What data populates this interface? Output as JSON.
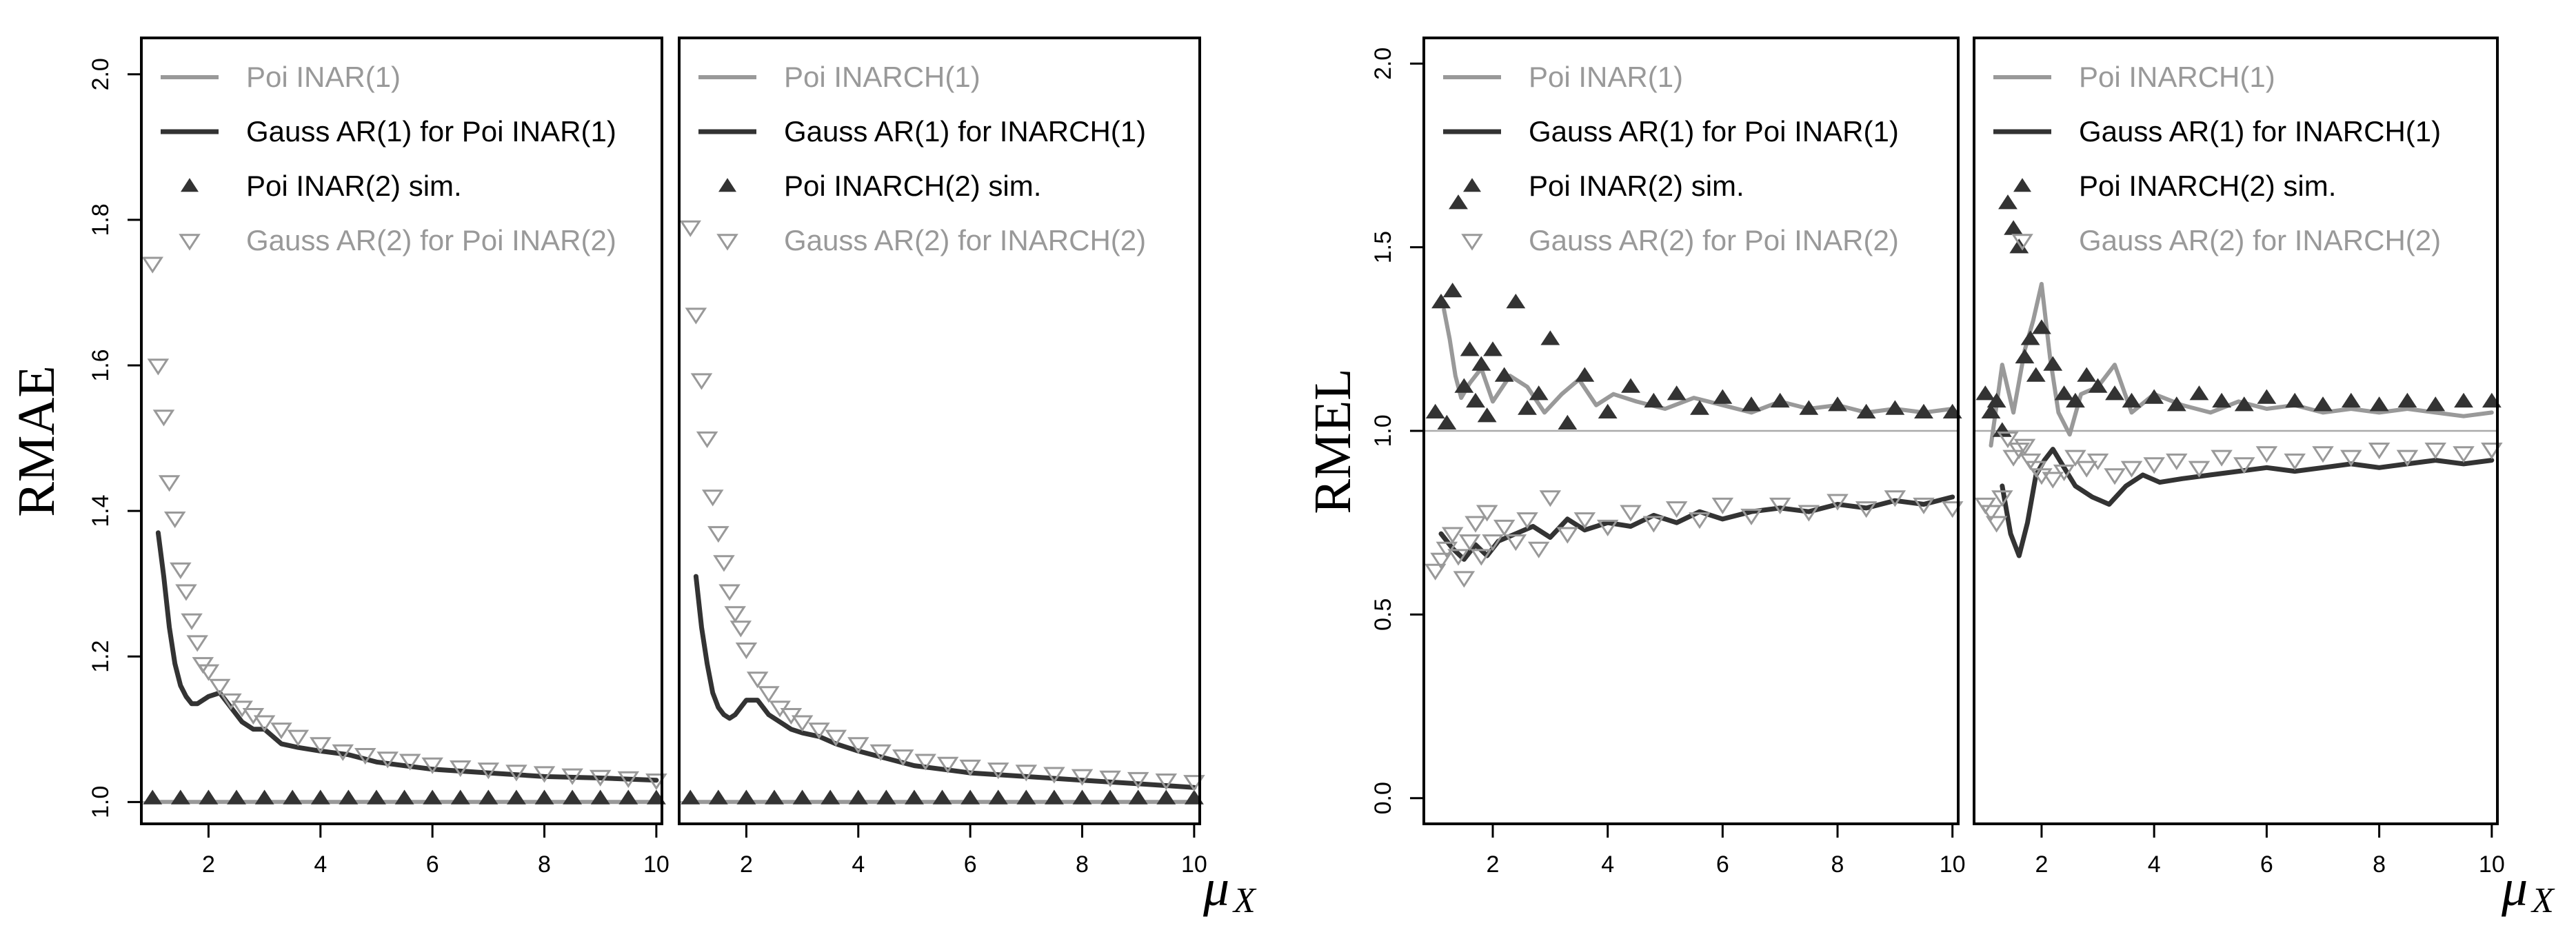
{
  "colors": {
    "gray": "#999999",
    "dark": "#333333",
    "ref": "#aaaaaa"
  },
  "chart_data": [
    {
      "type": "line",
      "ylabel": "RMAE",
      "xlabel": "μ",
      "xlabel_sub": "X",
      "xlim": [
        0.8,
        10.1
      ],
      "ylim": [
        0.97,
        2.05
      ],
      "xticks": [
        "2",
        "4",
        "6",
        "8",
        "10"
      ],
      "yticks": [
        "1.0",
        "1.2",
        "1.4",
        "1.6",
        "1.8",
        "2.0"
      ],
      "reference_y": 1.0,
      "legend": [
        "Poi INAR(1)",
        "Gauss AR(1) for Poi INAR(1)",
        "Poi INAR(2) sim.",
        "Gauss AR(2) for Poi INAR(2)"
      ],
      "series": [
        {
          "name": "Poi INAR(1)",
          "style": "line-gray",
          "x": [
            1,
            2,
            4,
            6,
            8,
            10
          ],
          "values": [
            1.0,
            1.0,
            1.0,
            1.0,
            1.0,
            1.0
          ]
        },
        {
          "name": "Gauss AR(1) for Poi INAR(1)",
          "style": "line-dark",
          "x": [
            1.1,
            1.2,
            1.3,
            1.4,
            1.5,
            1.6,
            1.7,
            1.8,
            1.9,
            2.0,
            2.2,
            2.4,
            2.6,
            2.8,
            3.0,
            3.3,
            3.6,
            4.0,
            4.5,
            5.0,
            5.5,
            6.0,
            7.0,
            8.0,
            9.0,
            10.0
          ],
          "values": [
            1.37,
            1.31,
            1.24,
            1.19,
            1.16,
            1.145,
            1.135,
            1.135,
            1.14,
            1.145,
            1.15,
            1.13,
            1.11,
            1.1,
            1.1,
            1.08,
            1.075,
            1.07,
            1.065,
            1.055,
            1.05,
            1.045,
            1.04,
            1.035,
            1.033,
            1.03
          ]
        },
        {
          "name": "Poi INAR(2) sim.",
          "style": "tri-up-dark",
          "x": [
            1.0,
            1.5,
            2.0,
            2.5,
            3.0,
            3.5,
            4.0,
            4.5,
            5.0,
            5.5,
            6.0,
            6.5,
            7.0,
            7.5,
            8.0,
            8.5,
            9.0,
            9.5,
            10.0
          ],
          "values": [
            1.005,
            1.005,
            1.005,
            1.005,
            1.005,
            1.005,
            1.005,
            1.005,
            1.005,
            1.005,
            1.005,
            1.005,
            1.005,
            1.005,
            1.005,
            1.005,
            1.005,
            1.005,
            1.005
          ]
        },
        {
          "name": "Gauss AR(2) for Poi INAR(2)",
          "style": "tri-down-gray",
          "x": [
            1.0,
            1.1,
            1.2,
            1.3,
            1.4,
            1.5,
            1.6,
            1.7,
            1.8,
            1.9,
            2.0,
            2.2,
            2.4,
            2.6,
            2.8,
            3.0,
            3.3,
            3.6,
            4.0,
            4.4,
            4.8,
            5.2,
            5.6,
            6.0,
            6.5,
            7.0,
            7.5,
            8.0,
            8.5,
            9.0,
            9.5,
            10.0
          ],
          "values": [
            1.74,
            1.6,
            1.53,
            1.44,
            1.39,
            1.32,
            1.29,
            1.25,
            1.22,
            1.19,
            1.18,
            1.16,
            1.14,
            1.13,
            1.12,
            1.11,
            1.1,
            1.09,
            1.08,
            1.07,
            1.065,
            1.06,
            1.057,
            1.052,
            1.048,
            1.045,
            1.042,
            1.04,
            1.037,
            1.035,
            1.033,
            1.03
          ]
        }
      ]
    },
    {
      "type": "line",
      "ylabel": "",
      "xlabel": "μ",
      "xlabel_sub": "X",
      "xlim": [
        0.8,
        10.1
      ],
      "ylim": [
        0.97,
        2.05
      ],
      "xticks": [
        "2",
        "4",
        "6",
        "8",
        "10"
      ],
      "yticks": [],
      "reference_y": 1.0,
      "legend": [
        "Poi INARCH(1)",
        "Gauss AR(1) for INARCH(1)",
        "Poi INARCH(2) sim.",
        "Gauss AR(2) for INARCH(2)"
      ],
      "series": [
        {
          "name": "Poi INARCH(1)",
          "style": "line-gray",
          "x": [
            1,
            2,
            4,
            6,
            8,
            10
          ],
          "values": [
            1.0,
            1.0,
            1.0,
            1.0,
            1.0,
            1.0
          ]
        },
        {
          "name": "Gauss AR(1) for INARCH(1)",
          "style": "line-dark",
          "x": [
            1.1,
            1.2,
            1.3,
            1.4,
            1.5,
            1.6,
            1.7,
            1.8,
            1.9,
            2.0,
            2.2,
            2.4,
            2.6,
            2.8,
            3.0,
            3.3,
            3.6,
            4.0,
            4.5,
            5.0,
            5.5,
            6.0,
            7.0,
            8.0,
            9.0,
            10.0
          ],
          "values": [
            1.31,
            1.24,
            1.19,
            1.15,
            1.13,
            1.12,
            1.115,
            1.12,
            1.13,
            1.14,
            1.14,
            1.12,
            1.11,
            1.1,
            1.095,
            1.09,
            1.08,
            1.07,
            1.06,
            1.05,
            1.045,
            1.04,
            1.035,
            1.03,
            1.025,
            1.02
          ]
        },
        {
          "name": "Poi INARCH(2) sim.",
          "style": "tri-up-dark",
          "x": [
            1.0,
            1.5,
            2.0,
            2.5,
            3.0,
            3.5,
            4.0,
            4.5,
            5.0,
            5.5,
            6.0,
            6.5,
            7.0,
            7.5,
            8.0,
            8.5,
            9.0,
            9.5,
            10.0
          ],
          "values": [
            1.005,
            1.005,
            1.005,
            1.005,
            1.005,
            1.005,
            1.005,
            1.005,
            1.005,
            1.005,
            1.005,
            1.005,
            1.005,
            1.005,
            1.005,
            1.005,
            1.005,
            1.005,
            1.005
          ]
        },
        {
          "name": "Gauss AR(2) for INARCH(2)",
          "style": "tri-down-gray",
          "x": [
            1.0,
            1.1,
            1.2,
            1.3,
            1.4,
            1.5,
            1.6,
            1.7,
            1.8,
            1.9,
            2.0,
            2.2,
            2.4,
            2.6,
            2.8,
            3.0,
            3.3,
            3.6,
            4.0,
            4.4,
            4.8,
            5.2,
            5.6,
            6.0,
            6.5,
            7.0,
            7.5,
            8.0,
            8.5,
            9.0,
            9.5,
            10.0
          ],
          "values": [
            1.79,
            1.67,
            1.58,
            1.5,
            1.42,
            1.37,
            1.33,
            1.29,
            1.26,
            1.24,
            1.21,
            1.17,
            1.15,
            1.13,
            1.12,
            1.11,
            1.1,
            1.09,
            1.08,
            1.07,
            1.063,
            1.057,
            1.053,
            1.049,
            1.045,
            1.042,
            1.039,
            1.036,
            1.034,
            1.032,
            1.03,
            1.028
          ]
        }
      ]
    },
    {
      "type": "line",
      "ylabel": "RMEL",
      "xlabel": "μ",
      "xlabel_sub": "X",
      "xlim": [
        0.8,
        10.1
      ],
      "ylim": [
        -0.07,
        2.07
      ],
      "xticks": [
        "2",
        "4",
        "6",
        "8",
        "10"
      ],
      "yticks": [
        "0.0",
        "0.5",
        "1.0",
        "1.5",
        "2.0"
      ],
      "reference_y": 1.0,
      "legend": [
        "Poi INAR(1)",
        "Gauss AR(1) for Poi INAR(1)",
        "Poi INAR(2) sim.",
        "Gauss AR(2) for Poi INAR(2)"
      ],
      "series": [
        {
          "name": "Poi INAR(1)",
          "style": "line-gray",
          "x": [
            1.15,
            1.25,
            1.35,
            1.45,
            1.6,
            1.8,
            2.0,
            2.3,
            2.6,
            2.9,
            3.2,
            3.5,
            3.8,
            4.1,
            4.5,
            5.0,
            5.5,
            6.0,
            6.5,
            7.0,
            7.5,
            8.0,
            8.5,
            9.0,
            9.5,
            10.0
          ],
          "values": [
            1.33,
            1.25,
            1.15,
            1.09,
            1.13,
            1.17,
            1.08,
            1.15,
            1.12,
            1.05,
            1.1,
            1.14,
            1.07,
            1.1,
            1.08,
            1.06,
            1.09,
            1.07,
            1.05,
            1.08,
            1.06,
            1.07,
            1.05,
            1.06,
            1.05,
            1.06
          ]
        },
        {
          "name": "Gauss AR(1) for Poi INAR(1)",
          "style": "line-dark",
          "x": [
            1.1,
            1.3,
            1.5,
            1.7,
            1.9,
            2.1,
            2.4,
            2.7,
            3.0,
            3.3,
            3.6,
            4.0,
            4.4,
            4.8,
            5.2,
            5.6,
            6.0,
            6.5,
            7.0,
            7.5,
            8.0,
            8.5,
            9.0,
            9.5,
            10.0
          ],
          "values": [
            0.72,
            0.68,
            0.65,
            0.69,
            0.66,
            0.7,
            0.72,
            0.74,
            0.71,
            0.76,
            0.73,
            0.75,
            0.74,
            0.77,
            0.75,
            0.78,
            0.76,
            0.78,
            0.79,
            0.78,
            0.8,
            0.79,
            0.81,
            0.8,
            0.82
          ]
        },
        {
          "name": "Poi INAR(2) sim.",
          "style": "tri-up-dark",
          "x": [
            1.0,
            1.1,
            1.2,
            1.3,
            1.4,
            1.5,
            1.6,
            1.7,
            1.8,
            1.9,
            2.0,
            2.2,
            2.4,
            2.6,
            2.8,
            3.0,
            3.3,
            3.6,
            4.0,
            4.4,
            4.8,
            5.2,
            5.6,
            6.0,
            6.5,
            7.0,
            7.5,
            8.0,
            8.5,
            9.0,
            9.5,
            10.0
          ],
          "values": [
            1.05,
            1.35,
            1.02,
            1.38,
            1.62,
            1.12,
            1.22,
            1.08,
            1.18,
            1.04,
            1.22,
            1.15,
            1.35,
            1.06,
            1.1,
            1.25,
            1.02,
            1.15,
            1.05,
            1.12,
            1.08,
            1.1,
            1.06,
            1.09,
            1.07,
            1.08,
            1.06,
            1.07,
            1.05,
            1.06,
            1.05,
            1.05
          ]
        },
        {
          "name": "Gauss AR(2) for Poi INAR(2)",
          "style": "tri-down-gray",
          "x": [
            1.0,
            1.1,
            1.2,
            1.3,
            1.4,
            1.5,
            1.6,
            1.7,
            1.8,
            1.9,
            2.0,
            2.2,
            2.4,
            2.6,
            2.8,
            3.0,
            3.3,
            3.6,
            4.0,
            4.4,
            4.8,
            5.2,
            5.6,
            6.0,
            6.5,
            7.0,
            7.5,
            8.0,
            8.5,
            9.0,
            9.5,
            10.0
          ],
          "values": [
            0.62,
            0.65,
            0.68,
            0.72,
            0.66,
            0.6,
            0.7,
            0.75,
            0.66,
            0.78,
            0.7,
            0.74,
            0.7,
            0.76,
            0.68,
            0.82,
            0.72,
            0.76,
            0.74,
            0.78,
            0.75,
            0.79,
            0.76,
            0.8,
            0.77,
            0.8,
            0.78,
            0.81,
            0.79,
            0.82,
            0.8,
            0.79
          ]
        }
      ]
    },
    {
      "type": "line",
      "ylabel": "",
      "xlabel": "μ",
      "xlabel_sub": "X",
      "xlim": [
        0.8,
        10.1
      ],
      "ylim": [
        -0.07,
        2.07
      ],
      "xticks": [
        "2",
        "4",
        "6",
        "8",
        "10"
      ],
      "yticks": [],
      "reference_y": 1.0,
      "legend": [
        "Poi INARCH(1)",
        "Gauss AR(1) for INARCH(1)",
        "Poi INARCH(2) sim.",
        "Gauss AR(2) for INARCH(2)"
      ],
      "series": [
        {
          "name": "Poi INARCH(1)",
          "style": "line-gray",
          "x": [
            1.1,
            1.3,
            1.5,
            1.7,
            1.85,
            2.0,
            2.15,
            2.3,
            2.5,
            2.7,
            3.0,
            3.3,
            3.6,
            4.0,
            4.5,
            5.0,
            5.5,
            6.0,
            6.5,
            7.0,
            7.5,
            8.0,
            8.5,
            9.0,
            9.5,
            10.0
          ],
          "values": [
            0.96,
            1.18,
            1.05,
            1.22,
            1.3,
            1.4,
            1.2,
            1.05,
            0.99,
            1.1,
            1.12,
            1.18,
            1.05,
            1.1,
            1.07,
            1.05,
            1.08,
            1.06,
            1.07,
            1.05,
            1.06,
            1.05,
            1.06,
            1.05,
            1.04,
            1.05
          ]
        },
        {
          "name": "Gauss AR(1) for INARCH(1)",
          "style": "line-dark",
          "x": [
            1.3,
            1.45,
            1.6,
            1.75,
            1.9,
            2.05,
            2.2,
            2.4,
            2.6,
            2.9,
            3.2,
            3.5,
            3.8,
            4.1,
            4.5,
            5.0,
            5.5,
            6.0,
            6.5,
            7.0,
            7.5,
            8.0,
            8.5,
            9.0,
            9.5,
            10.0
          ],
          "values": [
            0.85,
            0.72,
            0.66,
            0.75,
            0.88,
            0.92,
            0.95,
            0.9,
            0.85,
            0.82,
            0.8,
            0.85,
            0.88,
            0.86,
            0.87,
            0.88,
            0.89,
            0.9,
            0.89,
            0.9,
            0.91,
            0.9,
            0.91,
            0.92,
            0.91,
            0.92
          ]
        },
        {
          "name": "Poi INARCH(2) sim.",
          "style": "tri-up-dark",
          "x": [
            1.0,
            1.1,
            1.2,
            1.3,
            1.4,
            1.5,
            1.6,
            1.7,
            1.8,
            1.9,
            2.0,
            2.2,
            2.4,
            2.6,
            2.8,
            3.0,
            3.3,
            3.6,
            4.0,
            4.4,
            4.8,
            5.2,
            5.6,
            6.0,
            6.5,
            7.0,
            7.5,
            8.0,
            8.5,
            9.0,
            9.5,
            10.0
          ],
          "values": [
            1.1,
            1.05,
            1.08,
            1.0,
            1.62,
            1.55,
            1.5,
            1.2,
            1.25,
            1.15,
            1.28,
            1.18,
            1.1,
            1.08,
            1.15,
            1.12,
            1.1,
            1.08,
            1.09,
            1.07,
            1.1,
            1.08,
            1.07,
            1.09,
            1.08,
            1.07,
            1.08,
            1.07,
            1.08,
            1.07,
            1.08,
            1.08
          ]
        },
        {
          "name": "Gauss AR(2) for INARCH(2)",
          "style": "tri-down-gray",
          "x": [
            1.0,
            1.1,
            1.2,
            1.3,
            1.4,
            1.5,
            1.6,
            1.7,
            1.8,
            1.9,
            2.0,
            2.2,
            2.4,
            2.6,
            2.8,
            3.0,
            3.3,
            3.6,
            4.0,
            4.4,
            4.8,
            5.2,
            5.6,
            6.0,
            6.5,
            7.0,
            7.5,
            8.0,
            8.5,
            9.0,
            9.5,
            10.0
          ],
          "values": [
            0.8,
            0.78,
            0.75,
            0.82,
            0.98,
            0.93,
            0.95,
            0.96,
            0.92,
            0.9,
            0.88,
            0.87,
            0.89,
            0.93,
            0.9,
            0.92,
            0.88,
            0.9,
            0.91,
            0.92,
            0.9,
            0.93,
            0.91,
            0.94,
            0.92,
            0.94,
            0.93,
            0.95,
            0.93,
            0.95,
            0.94,
            0.95
          ]
        }
      ]
    }
  ]
}
